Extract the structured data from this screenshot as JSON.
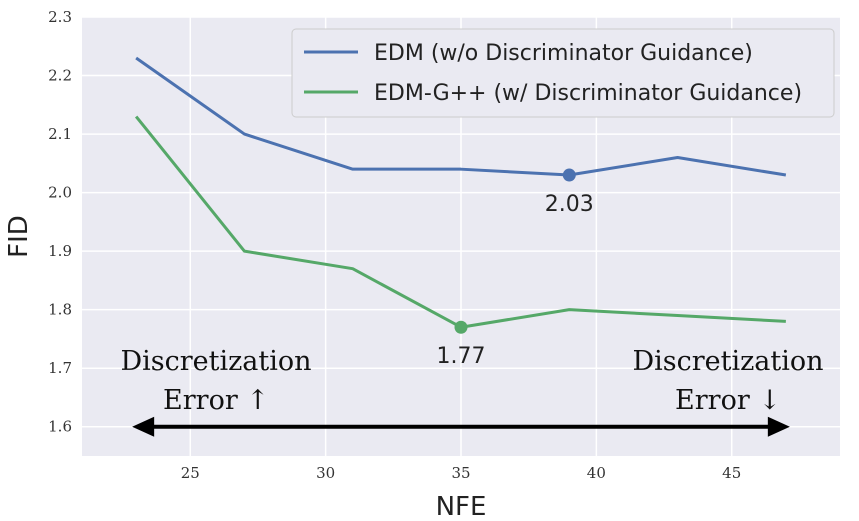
{
  "chart_data": {
    "type": "line",
    "xlabel": "NFE",
    "ylabel": "FID",
    "xlim": [
      21,
      49
    ],
    "ylim": [
      1.55,
      2.3
    ],
    "xticks": [
      25,
      30,
      35,
      40,
      45
    ],
    "yticks": [
      1.6,
      1.7,
      1.8,
      1.9,
      2.0,
      2.1,
      2.2,
      2.3
    ],
    "ytick_labels": [
      "1.6",
      "1.7",
      "1.8",
      "1.9",
      "2.0",
      "2.1",
      "2.2",
      "2.3"
    ],
    "grid": true,
    "legend_position": "top-right",
    "series": [
      {
        "name": "EDM (w/o Discriminator Guidance)",
        "color": "#4c72b0",
        "x": [
          23,
          27,
          31,
          35,
          39,
          43,
          47
        ],
        "y": [
          2.23,
          2.1,
          2.04,
          2.04,
          2.03,
          2.06,
          2.03
        ],
        "highlight": {
          "x": 39,
          "y": 2.03,
          "label": "2.03"
        }
      },
      {
        "name": "EDM-G++ (w/ Discriminator Guidance)",
        "color": "#55a868",
        "x": [
          23,
          27,
          31,
          35,
          39,
          43,
          47
        ],
        "y": [
          2.13,
          1.9,
          1.87,
          1.77,
          1.8,
          1.79,
          1.78
        ],
        "highlight": {
          "x": 35,
          "y": 1.77,
          "label": "1.77"
        }
      }
    ],
    "annotations": {
      "left": {
        "line1": "Discretization",
        "line2": "Error ↑"
      },
      "right": {
        "line1": "Discretization",
        "line2": "Error ↓"
      },
      "arrow": {
        "x_from": 23,
        "x_to": 47,
        "y": 1.6
      }
    }
  }
}
